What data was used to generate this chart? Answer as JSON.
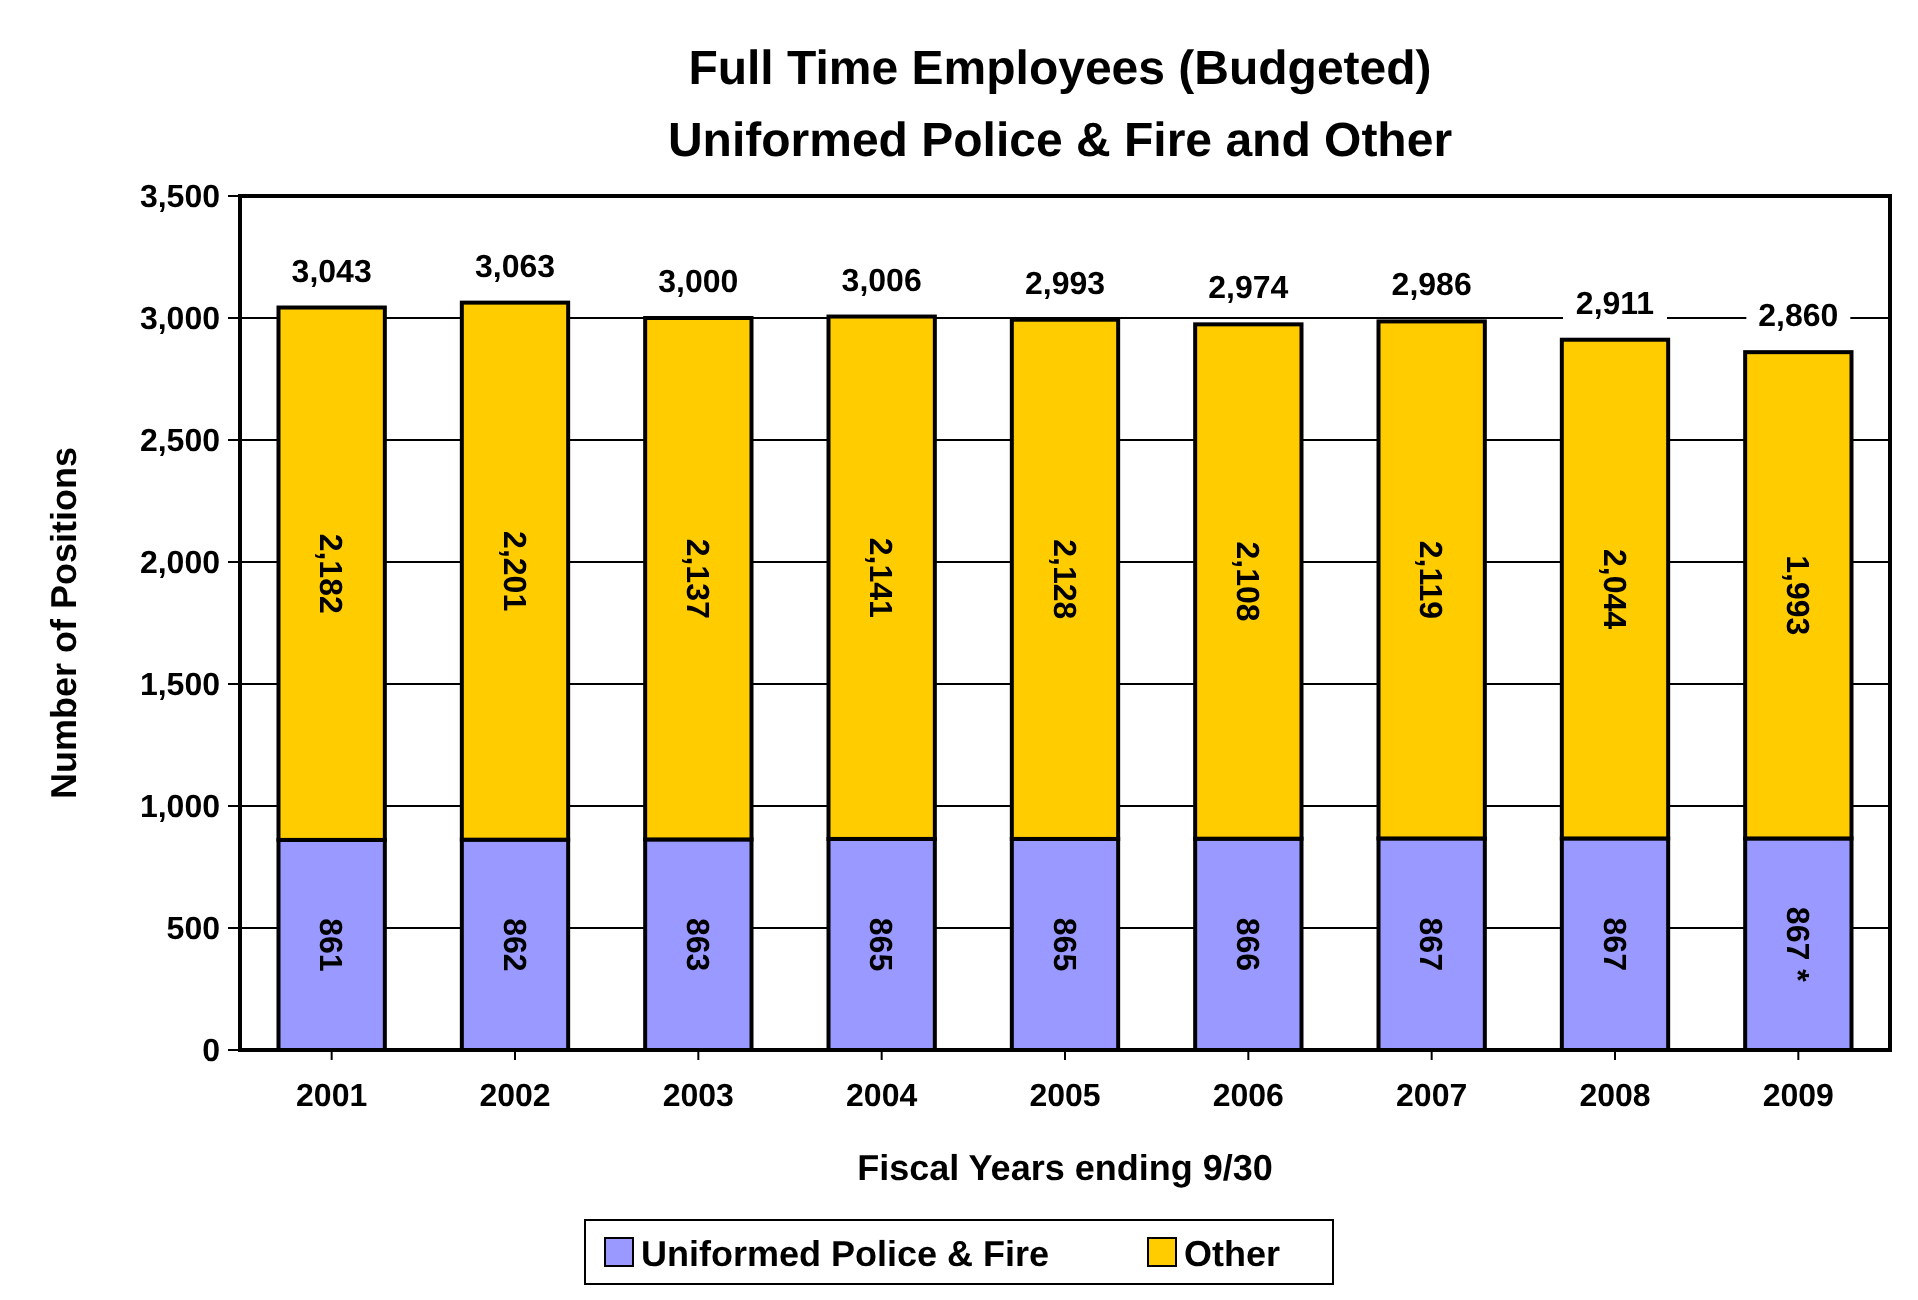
{
  "chart_data": {
    "type": "bar",
    "title": "Full Time Employees (Budgeted)",
    "subtitle": "Uniformed Police & Fire and Other",
    "xlabel": "Fiscal Years ending 9/30",
    "ylabel": "Number of Positions",
    "categories": [
      "2001",
      "2002",
      "2003",
      "2004",
      "2005",
      "2006",
      "2007",
      "2008",
      "2009"
    ],
    "stacked": true,
    "series": [
      {
        "name": "Uniformed Police & Fire",
        "color": "#9999ff",
        "values": [
          861,
          862,
          863,
          865,
          865,
          866,
          867,
          867,
          867
        ],
        "value_labels": [
          "861",
          "862",
          "863",
          "865",
          "865",
          "866",
          "867",
          "867",
          "867 *"
        ]
      },
      {
        "name": "Other",
        "color": "#ffcc00",
        "values": [
          2182,
          2201,
          2137,
          2141,
          2128,
          2108,
          2119,
          2044,
          1993
        ],
        "value_labels": [
          "2,182",
          "2,201",
          "2,137",
          "2,141",
          "2,128",
          "2,108",
          "2,119",
          "2,044",
          "1,993"
        ]
      }
    ],
    "totals": [
      "3,043",
      "3,063",
      "3,000",
      "3,006",
      "2,993",
      "2,974",
      "2,986",
      "2,911",
      "2,860"
    ],
    "ylim": [
      0,
      3500
    ],
    "yticks": [
      {
        "value": 0,
        "label": "0"
      },
      {
        "value": 500,
        "label": "500"
      },
      {
        "value": 1000,
        "label": "1,000"
      },
      {
        "value": 1500,
        "label": "1,500"
      },
      {
        "value": 2000,
        "label": "2,000"
      },
      {
        "value": 2500,
        "label": "2,500"
      },
      {
        "value": 3000,
        "label": "3,000"
      },
      {
        "value": 3500,
        "label": "3,500"
      }
    ],
    "grid": "y",
    "legend": "bottom"
  }
}
